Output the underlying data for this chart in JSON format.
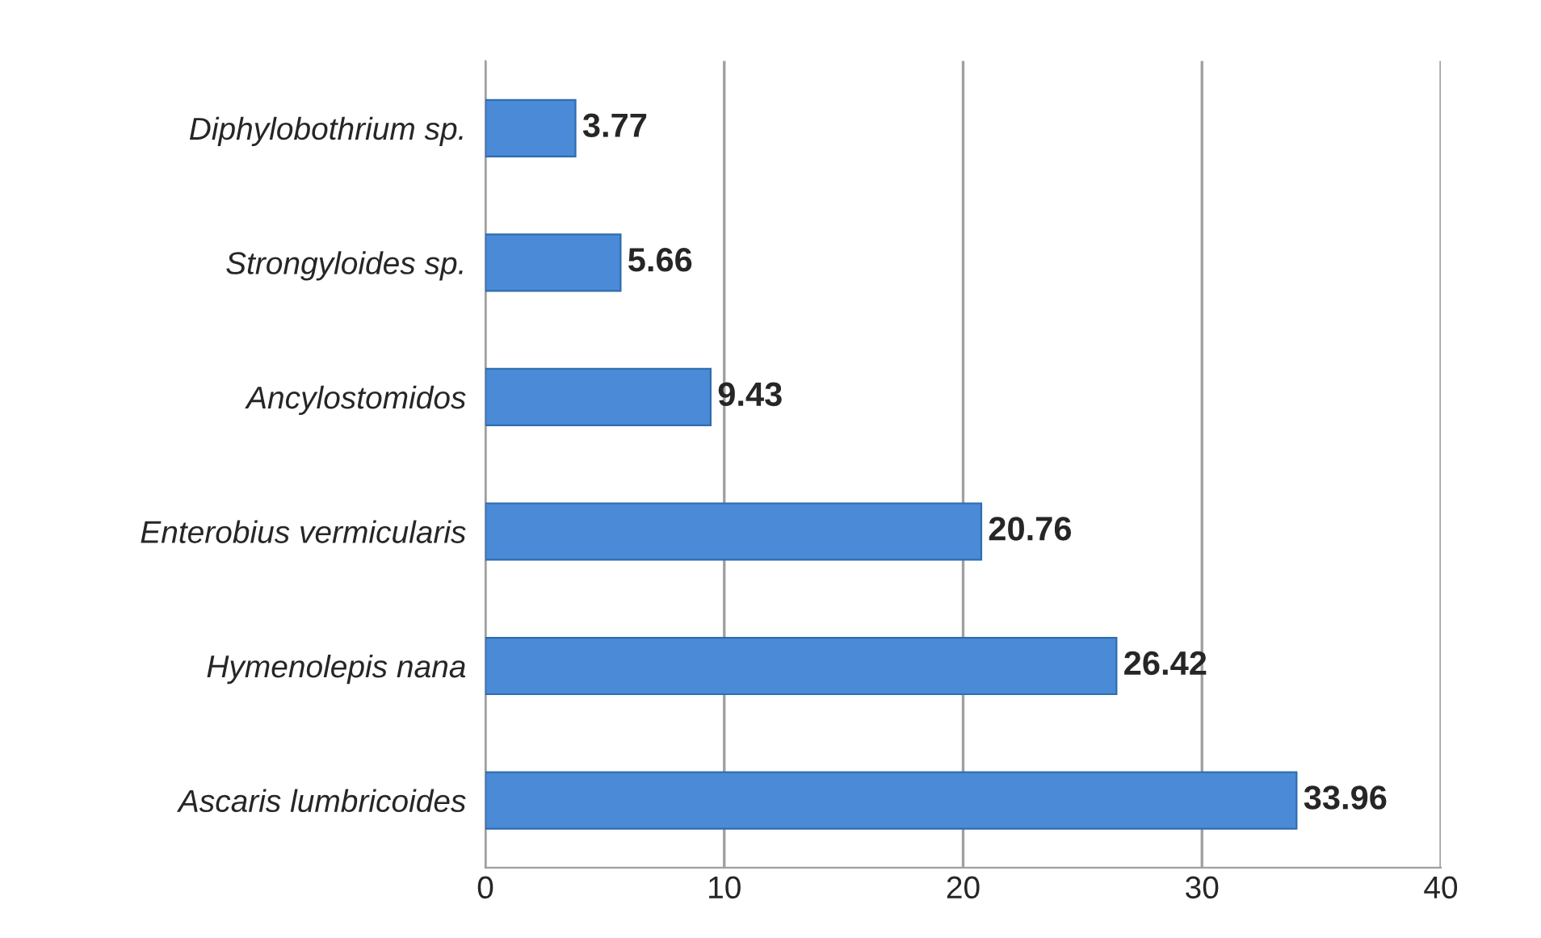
{
  "chart_data": {
    "type": "bar",
    "orientation": "horizontal",
    "categories": [
      "Diphylobothrium sp.",
      "Strongyloides sp.",
      "Ancylostomidos",
      "Enterobius vermicularis",
      "Hymenolepis nana",
      "Ascaris lumbricoides"
    ],
    "values": [
      3.77,
      5.66,
      9.43,
      20.76,
      26.42,
      33.96
    ],
    "color": "#4a8ad6",
    "xlim": [
      0,
      40
    ],
    "xticks": [
      0,
      10,
      20,
      30,
      40
    ],
    "grid": "x",
    "data_labels": true
  }
}
